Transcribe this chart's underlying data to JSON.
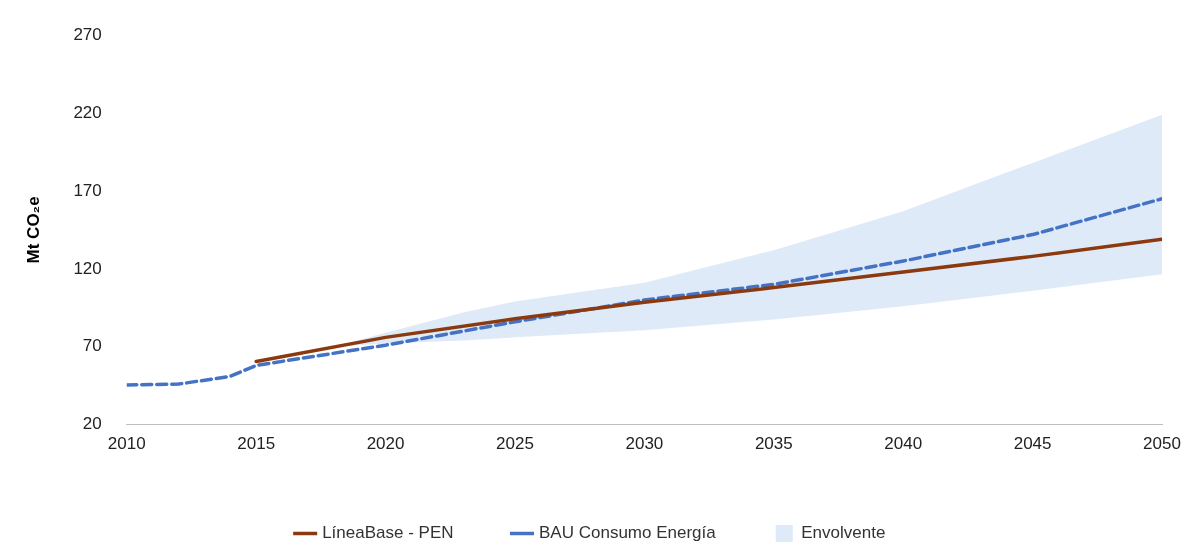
{
  "chart_data": {
    "type": "line",
    "ylabel": "Mt CO₂e",
    "xlim": [
      2010,
      2050
    ],
    "xticks": [
      2010,
      2015,
      2020,
      2025,
      2030,
      2035,
      2040,
      2045,
      2050
    ],
    "ylim": [
      20,
      270
    ],
    "yticks": [
      20,
      70,
      120,
      170,
      220,
      270
    ],
    "grid": false,
    "legend": "bottom",
    "marker": "none",
    "series": [
      {
        "name": "Envolvente",
        "type": "area",
        "color": "#deeaf7",
        "x": [
          2018,
          2020,
          2023,
          2025,
          2030,
          2035,
          2040,
          2045,
          2050
        ],
        "values": [
          null,
          null,
          null,
          null,
          null,
          null,
          null,
          null,
          null
        ],
        "lower": [
          70,
          72,
          74,
          76,
          80.5,
          87.5,
          96,
          106,
          116.5
        ],
        "upper": [
          70,
          79,
          92,
          99,
          111,
          132,
          157,
          188,
          219
        ]
      },
      {
        "name": "BAU Consumo Energía",
        "type": "line",
        "line_style": "dashed",
        "color": "#4472c4",
        "x": [
          2010,
          2012,
          2014,
          2015,
          2020,
          2025,
          2030,
          2035,
          2040,
          2045,
          2050
        ],
        "values": [
          45.5,
          46,
          51,
          58,
          71,
          86,
          100,
          110,
          125,
          142,
          165
        ]
      },
      {
        "name": "LíneaBase - PEN",
        "type": "line",
        "line_style": "solid",
        "color": "#8b3a0f",
        "x": [
          2015,
          2020,
          2025,
          2030,
          2035,
          2040,
          2045,
          2050
        ],
        "values": [
          60.5,
          76,
          88,
          98.5,
          108,
          118,
          128,
          139
        ]
      }
    ]
  }
}
